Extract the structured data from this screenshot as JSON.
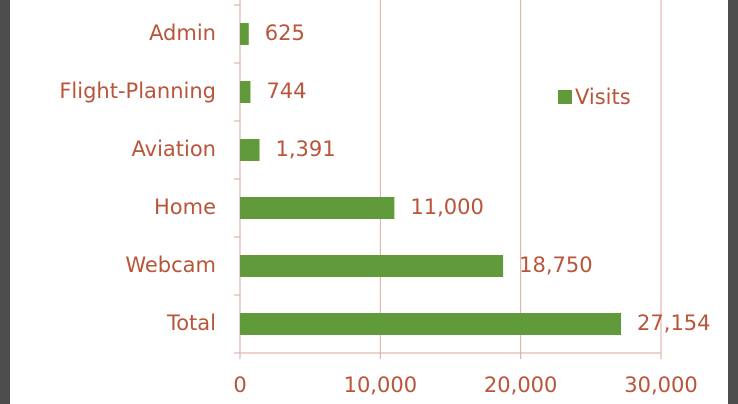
{
  "chart_data": {
    "type": "bar",
    "orientation": "horizontal",
    "categories": [
      "Admin",
      "Flight-Planning",
      "Aviation",
      "Home",
      "Webcam",
      "Total"
    ],
    "series": [
      {
        "name": "Visits",
        "color": "#619a3a",
        "values": [
          625,
          744,
          1391,
          11000,
          18750,
          27154
        ],
        "value_labels": [
          "625",
          "744",
          "1,391",
          "11,000",
          "18,750",
          "27,154"
        ]
      }
    ],
    "xlim": [
      0,
      30000
    ],
    "xticks": [
      0,
      {
        "value": 10000,
        "label": "10,000"
      },
      {
        "value": 20000,
        "label": "20,000"
      },
      {
        "value": 30000,
        "label": "30,000"
      }
    ],
    "grid": true,
    "legend": "right"
  }
}
